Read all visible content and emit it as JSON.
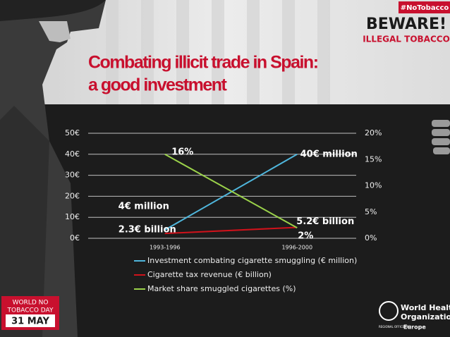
{
  "branding": {
    "hashtag": "#NoTobacco",
    "beware": "BEWARE!",
    "illegal": "ILLEGAL TOBACCO",
    "day_line1": "WORLD  NO",
    "day_line2": "TOBACCO DAY",
    "date": "31 MAY",
    "who_line1": "World Health",
    "who_line2": "Organization",
    "regional": "REGIONAL OFFICE FOR",
    "region": "Europe"
  },
  "chart_data": {
    "type": "line",
    "title": [
      "Combating illicit trade in Spain:",
      "a good investment"
    ],
    "categories": [
      "1993-1996",
      "1996-2000"
    ],
    "ylim": [
      0,
      50
    ],
    "yticks": [
      {
        "value": 0,
        "label": "0€"
      },
      {
        "value": 10,
        "label": "10€"
      },
      {
        "value": 20,
        "label": "20€"
      },
      {
        "value": 30,
        "label": "30€"
      },
      {
        "value": 40,
        "label": "40€"
      },
      {
        "value": 50,
        "label": "50€"
      }
    ],
    "y2lim": [
      0,
      20
    ],
    "y2ticks": [
      {
        "value": 0,
        "label": "0%"
      },
      {
        "value": 5,
        "label": "5%"
      },
      {
        "value": 10,
        "label": "10%"
      },
      {
        "value": 15,
        "label": "15%"
      },
      {
        "value": 20,
        "label": "20%"
      }
    ],
    "grid": true,
    "series": [
      {
        "name": "Investment combating cigarette smuggling (€ million)",
        "color": "#4fb6dc",
        "values": [
          4,
          40
        ],
        "value_labels": [
          "4€ million",
          "40€ million"
        ]
      },
      {
        "name": "Cigarette tax revenue (€ billion)",
        "color": "#d0121b",
        "values": [
          2.3,
          5.2
        ],
        "value_labels": [
          "2.3€ billion",
          "5.2€ billion"
        ]
      },
      {
        "name": "Market share smuggled cigarettes (%)",
        "color": "#9bd24a",
        "axis": "y2",
        "values": [
          16,
          2
        ],
        "value_labels": [
          "16%",
          "2%"
        ]
      }
    ]
  }
}
